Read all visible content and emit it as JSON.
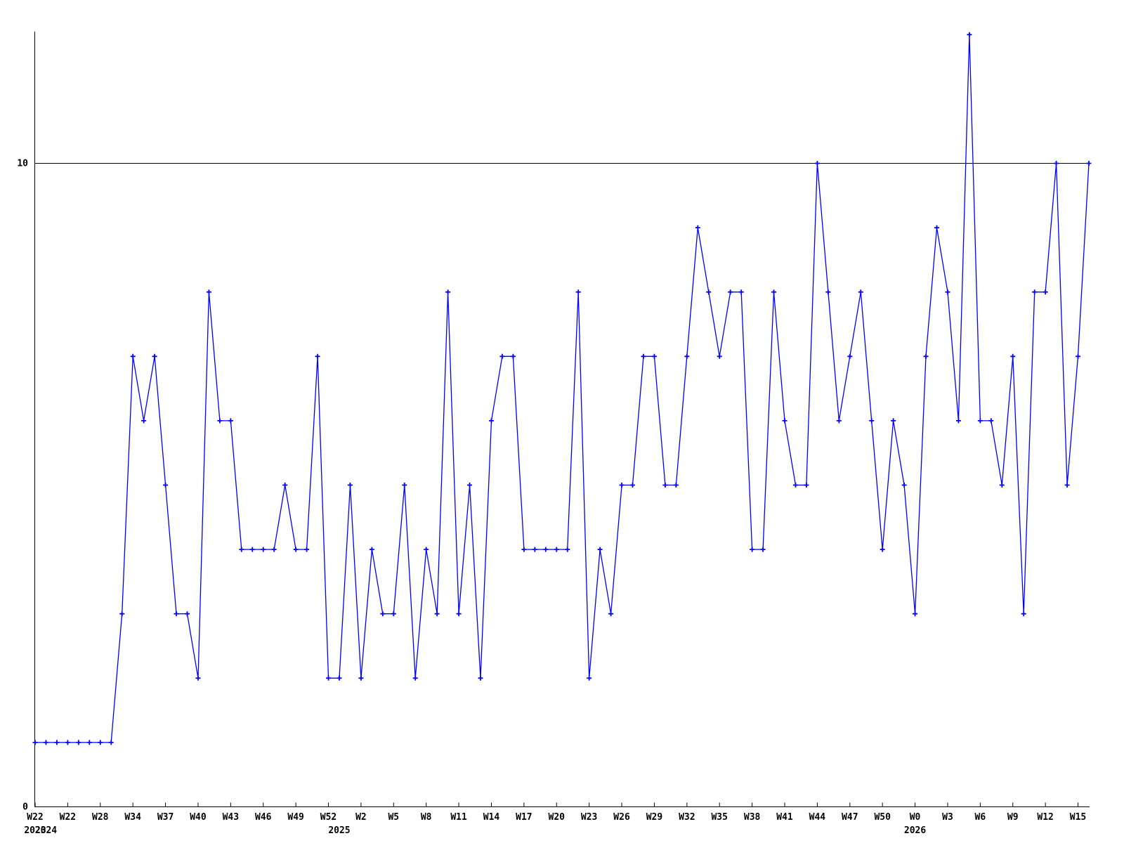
{
  "chart_data": {
    "type": "line",
    "title": "",
    "xlabel": "",
    "ylabel": "",
    "background": "#ffffff",
    "line_color": "#0000ff",
    "axis_color": "#000000",
    "marker": "plus-icon",
    "ylim": [
      0,
      12.1
    ],
    "yticks": [
      0,
      10
    ],
    "ytick_labels": [
      "0",
      "10"
    ],
    "grid_y": 10,
    "legend": "none",
    "tick_every_n_points": 3,
    "x_tick_labels": [
      "W22",
      "W22",
      "W28",
      "W34",
      "W37",
      "W40",
      "W43",
      "W46",
      "W49",
      "W52",
      "W2",
      "W5",
      "W8",
      "W11",
      "W14",
      "W17",
      "W20",
      "W23",
      "W26",
      "W29",
      "W32",
      "W35",
      "W38",
      "W41",
      "W44",
      "W47",
      "W50",
      "W0",
      "W3",
      "W6",
      "W9",
      "W12",
      "W15"
    ],
    "year_labels": [
      {
        "text": "2023",
        "point_index": 0
      },
      {
        "text": "2024",
        "point_index": 1
      },
      {
        "text": "2025",
        "point_index": 28
      },
      {
        "text": "2026",
        "point_index": 81
      }
    ],
    "series": [
      {
        "name": "weekly-values",
        "values": [
          1,
          1,
          1,
          1,
          1,
          1,
          1,
          1,
          3,
          7,
          6,
          7,
          5,
          3,
          3,
          2,
          8,
          6,
          6,
          4,
          4,
          4,
          4,
          5,
          4,
          4,
          7,
          2,
          2,
          5,
          2,
          4,
          3,
          3,
          5,
          2,
          4,
          3,
          8,
          3,
          5,
          2,
          6,
          7,
          7,
          4,
          4,
          4,
          4,
          4,
          8,
          2,
          4,
          3,
          5,
          5,
          7,
          7,
          5,
          5,
          7,
          9,
          8,
          7,
          8,
          8,
          4,
          4,
          8,
          6,
          5,
          5,
          10,
          8,
          6,
          7,
          8,
          6,
          4,
          6,
          5,
          3,
          7,
          9,
          8,
          6,
          12,
          6,
          6,
          5,
          7,
          3,
          8,
          8,
          10,
          5,
          7,
          10
        ]
      }
    ]
  }
}
